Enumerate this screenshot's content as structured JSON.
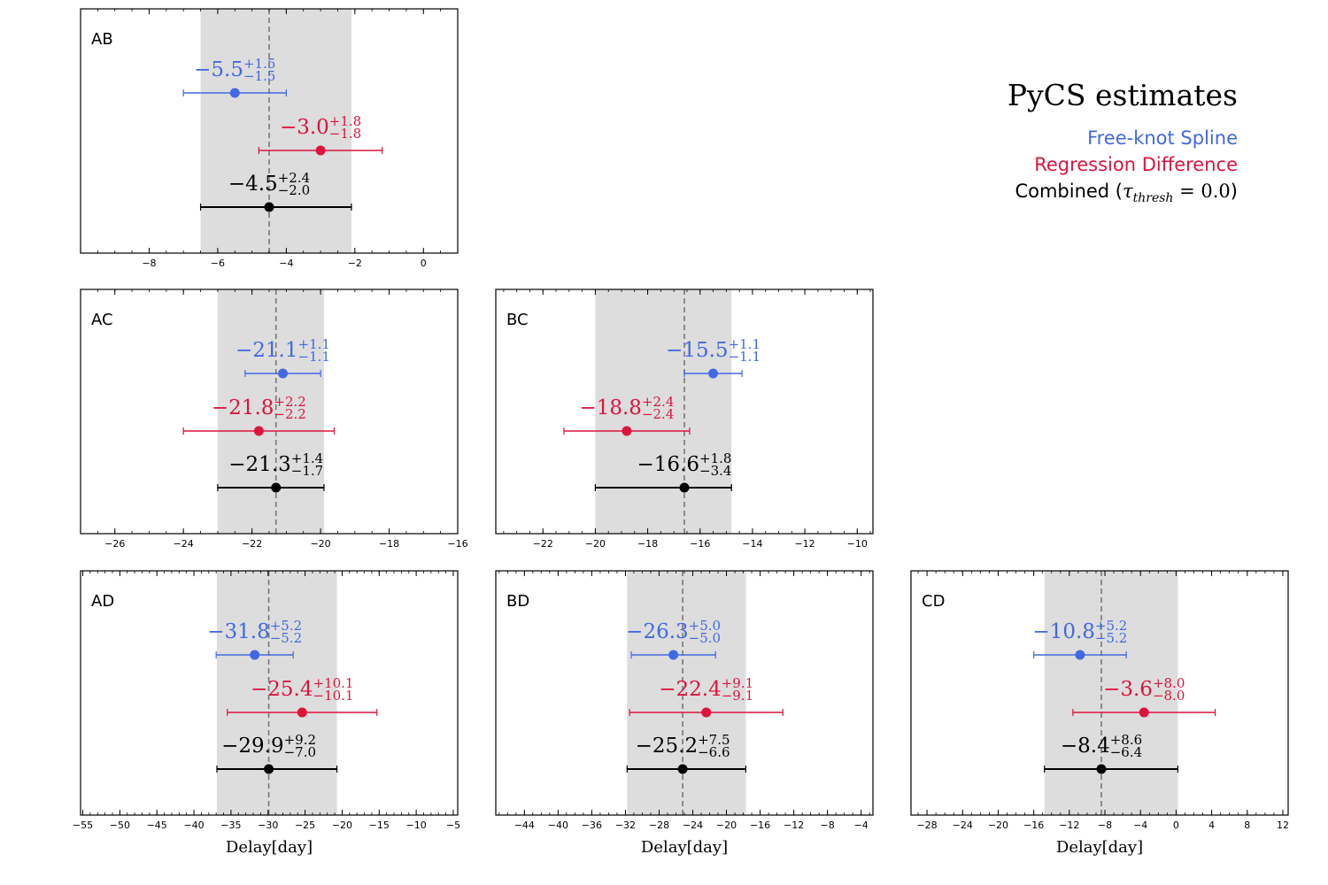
{
  "chart_data": {
    "type": "errorbar",
    "xlabel": "Delay[day]",
    "legend": {
      "title": "PyCS estimates",
      "entries": [
        {
          "key": "spline",
          "label": "Free-knot Spline",
          "color": "#4169e1"
        },
        {
          "key": "regdiff",
          "label": "Regression Difference",
          "color": "#dc143c"
        },
        {
          "key": "combined",
          "label_prefix": "Combined (",
          "tau_symbol": "τ",
          "tau_subscript": "thresh",
          "tau_value": " = 0.0",
          "label_suffix": ")",
          "color": "#000000"
        }
      ]
    },
    "panels": [
      {
        "name": "AB",
        "xlim": [
          -10,
          1
        ],
        "ticks": [
          -8,
          -6,
          -4,
          -2,
          0
        ],
        "minor_step": 0.5,
        "show_xlabel": false,
        "band": [
          -6.5,
          -2.1
        ],
        "combined_center": -4.5,
        "estimates": [
          {
            "series": "spline",
            "value": -5.5,
            "plus": 1.5,
            "minus": 1.5,
            "label_main": "−5.5",
            "label_plus": "+1.5",
            "label_minus": "−1.5"
          },
          {
            "series": "regdiff",
            "value": -3.0,
            "plus": 1.8,
            "minus": 1.8,
            "label_main": "−3.0",
            "label_plus": "+1.8",
            "label_minus": "−1.8"
          },
          {
            "series": "combined",
            "value": -4.5,
            "plus": 2.4,
            "minus": 2.0,
            "label_main": "−4.5",
            "label_plus": "+2.4",
            "label_minus": "−2.0"
          }
        ]
      },
      {
        "name": "AC",
        "xlim": [
          -27,
          -16
        ],
        "ticks": [
          -26,
          -24,
          -22,
          -20,
          -18,
          -16
        ],
        "minor_step": 0.5,
        "show_xlabel": false,
        "band": [
          -23.0,
          -19.9
        ],
        "combined_center": -21.3,
        "estimates": [
          {
            "series": "spline",
            "value": -21.1,
            "plus": 1.1,
            "minus": 1.1,
            "label_main": "−21.1",
            "label_plus": "+1.1",
            "label_minus": "−1.1"
          },
          {
            "series": "regdiff",
            "value": -21.8,
            "plus": 2.2,
            "minus": 2.2,
            "label_main": "−21.8",
            "label_plus": "+2.2",
            "label_minus": "−2.2"
          },
          {
            "series": "combined",
            "value": -21.3,
            "plus": 1.4,
            "minus": 1.7,
            "label_main": "−21.3",
            "label_plus": "+1.4",
            "label_minus": "−1.7"
          }
        ]
      },
      {
        "name": "BC",
        "xlim": [
          -23.8,
          -9.4
        ],
        "ticks": [
          -22,
          -20,
          -18,
          -16,
          -14,
          -12,
          -10
        ],
        "minor_step": 0.5,
        "show_xlabel": false,
        "band": [
          -20.0,
          -14.8
        ],
        "combined_center": -16.6,
        "estimates": [
          {
            "series": "spline",
            "value": -15.5,
            "plus": 1.1,
            "minus": 1.1,
            "label_main": "−15.5",
            "label_plus": "+1.1",
            "label_minus": "−1.1"
          },
          {
            "series": "regdiff",
            "value": -18.8,
            "plus": 2.4,
            "minus": 2.4,
            "label_main": "−18.8",
            "label_plus": "+2.4",
            "label_minus": "−2.4"
          },
          {
            "series": "combined",
            "value": -16.6,
            "plus": 1.8,
            "minus": 3.4,
            "label_main": "−16.6",
            "label_plus": "+1.8",
            "label_minus": "−3.4"
          }
        ]
      },
      {
        "name": "AD",
        "xlim": [
          -55.3,
          -4.4
        ],
        "ticks": [
          -55,
          -50,
          -45,
          -40,
          -35,
          -30,
          -25,
          -20,
          -15,
          -10,
          -5
        ],
        "minor_step": 1,
        "show_xlabel": true,
        "band": [
          -36.9,
          -20.7
        ],
        "combined_center": -29.9,
        "estimates": [
          {
            "series": "spline",
            "value": -31.8,
            "plus": 5.2,
            "minus": 5.2,
            "label_main": "−31.8",
            "label_plus": "+5.2",
            "label_minus": "−5.2"
          },
          {
            "series": "regdiff",
            "value": -25.4,
            "plus": 10.1,
            "minus": 10.1,
            "label_main": "−25.4",
            "label_plus": "+10.1",
            "label_minus": "−10.1"
          },
          {
            "series": "combined",
            "value": -29.9,
            "plus": 9.2,
            "minus": 7.0,
            "label_main": "−29.9",
            "label_plus": "+9.2",
            "label_minus": "−7.0"
          }
        ]
      },
      {
        "name": "BD",
        "xlim": [
          -47.4,
          -2.6
        ],
        "ticks": [
          -44,
          -40,
          -36,
          -32,
          -28,
          -24,
          -20,
          -16,
          -12,
          -8,
          -4
        ],
        "minor_step": 1,
        "show_xlabel": true,
        "band": [
          -31.8,
          -17.7
        ],
        "combined_center": -25.2,
        "estimates": [
          {
            "series": "spline",
            "value": -26.3,
            "plus": 5.0,
            "minus": 5.0,
            "label_main": "−26.3",
            "label_plus": "+5.0",
            "label_minus": "−5.0"
          },
          {
            "series": "regdiff",
            "value": -22.4,
            "plus": 9.1,
            "minus": 9.1,
            "label_main": "−22.4",
            "label_plus": "+9.1",
            "label_minus": "−9.1"
          },
          {
            "series": "combined",
            "value": -25.2,
            "plus": 7.5,
            "minus": 6.6,
            "label_main": "−25.2",
            "label_plus": "+7.5",
            "label_minus": "−6.6"
          }
        ]
      },
      {
        "name": "CD",
        "xlim": [
          -29.8,
          12.6
        ],
        "ticks": [
          -28,
          -24,
          -20,
          -16,
          -12,
          -8,
          -4,
          0,
          4,
          8,
          12
        ],
        "minor_step": 1,
        "show_xlabel": true,
        "band": [
          -14.8,
          0.2
        ],
        "combined_center": -8.4,
        "estimates": [
          {
            "series": "spline",
            "value": -10.8,
            "plus": 5.2,
            "minus": 5.2,
            "label_main": "−10.8",
            "label_plus": "+5.2",
            "label_minus": "−5.2"
          },
          {
            "series": "regdiff",
            "value": -3.6,
            "plus": 8.0,
            "minus": 8.0,
            "label_main": "−3.6",
            "label_plus": "+8.0",
            "label_minus": "−8.0"
          },
          {
            "series": "combined",
            "value": -8.4,
            "plus": 8.6,
            "minus": 6.4,
            "label_main": "−8.4",
            "label_plus": "+8.6",
            "label_minus": "−6.4"
          }
        ]
      }
    ]
  }
}
